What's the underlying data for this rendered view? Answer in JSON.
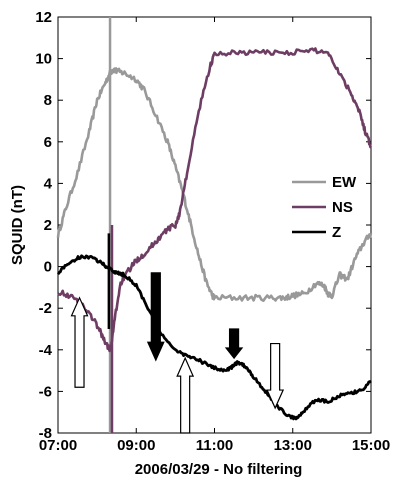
{
  "chart_data": {
    "type": "line",
    "xlabel": "2006/03/29 - No filtering",
    "ylabel": "SQUID (nT)",
    "xlim": [
      7,
      15
    ],
    "ylim": [
      -8,
      12
    ],
    "x_ticks": [
      7,
      9,
      11,
      13,
      15
    ],
    "x_tick_labels": [
      "07:00",
      "09:00",
      "11:00",
      "13:00",
      "15:00"
    ],
    "y_ticks": [
      12,
      10,
      8,
      6,
      4,
      2,
      0,
      -2,
      -4,
      -6,
      -8
    ],
    "y_tick_labels": [
      "12",
      "10",
      "8",
      "6",
      "4",
      "2",
      "0",
      "-2",
      "-4",
      "-6",
      "-8"
    ],
    "legend": {
      "placement": "right"
    },
    "series": [
      {
        "name": "EW",
        "color": "#999999",
        "x": [
          7.0,
          7.2,
          7.5,
          7.8,
          8.0,
          8.2,
          8.33,
          8.42,
          8.5,
          8.7,
          9.0,
          9.2,
          9.5,
          9.8,
          10.0,
          10.2,
          10.4,
          10.6,
          10.8,
          10.95,
          11.0,
          11.5,
          12.0,
          12.5,
          12.8,
          13.0,
          13.3,
          13.6,
          13.8,
          13.9,
          14.0,
          14.2,
          14.4,
          14.6,
          14.8,
          15.0
        ],
        "y": [
          1.5,
          2.8,
          4.5,
          6.5,
          8.0,
          8.8,
          9.3,
          9.5,
          9.4,
          9.3,
          9.0,
          8.5,
          7.3,
          6.0,
          4.8,
          3.5,
          2.0,
          0.5,
          -0.8,
          -1.4,
          -1.5,
          -1.5,
          -1.5,
          -1.5,
          -1.5,
          -1.4,
          -1.3,
          -0.8,
          -0.9,
          -1.3,
          -1.4,
          -0.4,
          -0.6,
          0.4,
          1.1,
          1.6
        ],
        "spike": {
          "x": 8.33,
          "y_min": -8,
          "y_max": 12
        }
      },
      {
        "name": "NS",
        "color": "#6e3d63",
        "x": [
          7.0,
          7.3,
          7.6,
          7.9,
          8.1,
          8.25,
          8.35,
          8.45,
          8.6,
          8.8,
          9.0,
          9.2,
          9.4,
          9.6,
          9.8,
          10.0,
          10.1,
          10.3,
          10.6,
          10.9,
          11.0,
          11.5,
          12.0,
          12.5,
          13.0,
          13.5,
          13.9,
          14.2,
          14.5,
          14.7,
          14.85,
          15.0
        ],
        "y": [
          -1.2,
          -1.4,
          -1.8,
          -2.5,
          -3.2,
          -3.8,
          -4.0,
          -2.5,
          -0.8,
          -0.2,
          0.3,
          0.6,
          1.0,
          1.4,
          1.8,
          2.0,
          2.5,
          4.5,
          7.5,
          9.7,
          10.2,
          10.3,
          10.3,
          10.3,
          10.3,
          10.4,
          10.3,
          9.3,
          8.3,
          7.5,
          6.5,
          5.8
        ],
        "spike": {
          "x": 8.38,
          "y_min": -8,
          "y_max": 2
        }
      },
      {
        "name": "Z",
        "color": "#000000",
        "x": [
          7.0,
          7.3,
          7.6,
          7.9,
          8.1,
          8.3,
          8.5,
          8.7,
          9.0,
          9.3,
          9.6,
          10.0,
          10.3,
          10.6,
          10.9,
          11.2,
          11.4,
          11.6,
          11.8,
          12.0,
          12.3,
          12.6,
          12.9,
          13.1,
          13.3,
          13.6,
          13.9,
          14.2,
          14.5,
          14.8,
          15.0
        ],
        "y": [
          -0.3,
          0.2,
          0.5,
          0.4,
          0.2,
          -0.1,
          -0.3,
          -0.4,
          -0.9,
          -2.0,
          -3.2,
          -4.0,
          -4.3,
          -4.5,
          -4.8,
          -5.0,
          -4.9,
          -4.6,
          -4.8,
          -5.3,
          -6.0,
          -6.7,
          -7.2,
          -7.3,
          -6.9,
          -6.4,
          -6.5,
          -6.2,
          -6.1,
          -5.9,
          -5.5
        ],
        "spike": {
          "x": 8.3,
          "y_min": -3,
          "y_max": 1.6
        }
      }
    ],
    "annotations": [
      {
        "type": "arrow-up",
        "style": "hollow",
        "x": 7.55,
        "y_tail": -5.8,
        "y_head": -1.5
      },
      {
        "type": "arrow-down",
        "style": "filled",
        "x": 9.5,
        "y_tail": -0.3,
        "y_head": -4.5
      },
      {
        "type": "arrow-up",
        "style": "hollow",
        "x": 10.25,
        "y_tail": -8.0,
        "y_head": -4.4
      },
      {
        "type": "arrow-down",
        "style": "filled",
        "x": 11.5,
        "y_tail": -3.0,
        "y_head": -4.4
      },
      {
        "type": "arrow-down",
        "style": "hollow",
        "x": 12.55,
        "y_tail": -3.7,
        "y_head": -6.8
      }
    ]
  }
}
